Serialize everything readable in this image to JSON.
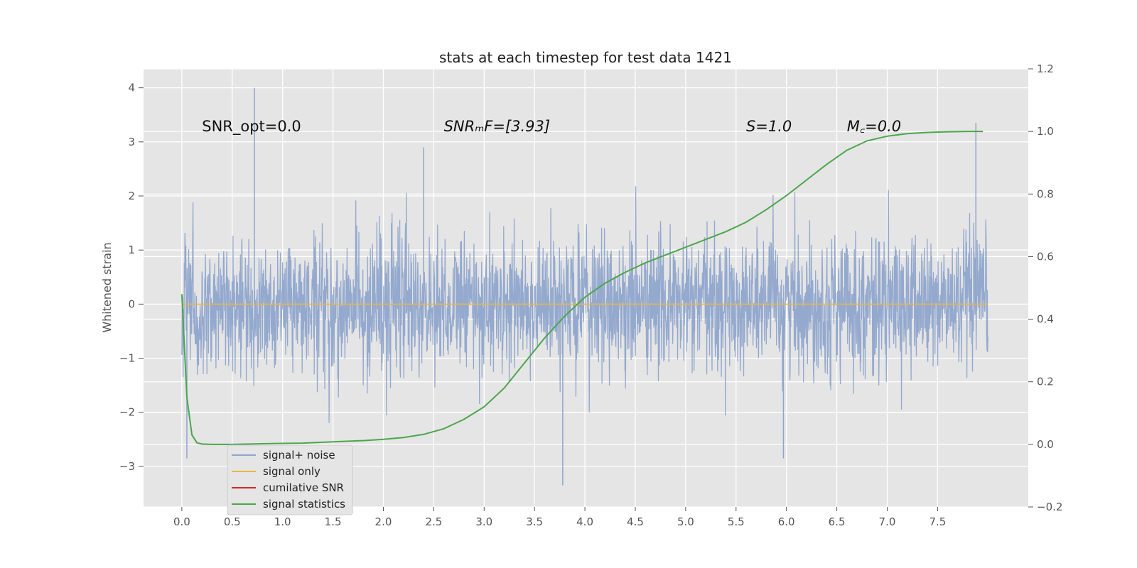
{
  "chart_data": {
    "type": "line",
    "title": "stats at each timestep for test data 1421",
    "ylabel": "Whitened strain",
    "xlabel": "",
    "xlim": [
      -0.38,
      8.4
    ],
    "ylim": [
      -3.75,
      4.35
    ],
    "y2lim": [
      -0.2,
      1.2
    ],
    "x_ticks": [
      0.0,
      0.5,
      1.0,
      1.5,
      2.0,
      2.5,
      3.0,
      3.5,
      4.0,
      4.5,
      5.0,
      5.5,
      6.0,
      6.5,
      7.0,
      7.5
    ],
    "x_tick_labels": [
      "0.0",
      "0.5",
      "1.0",
      "1.5",
      "2.0",
      "2.5",
      "3.0",
      "3.5",
      "4.0",
      "4.5",
      "5.0",
      "5.5",
      "6.0",
      "6.5",
      "7.0",
      "7.5"
    ],
    "y_ticks": [
      -3,
      -2,
      -1,
      0,
      1,
      2,
      3,
      4
    ],
    "y_tick_labels": [
      "−3",
      "−2",
      "−1",
      "0",
      "1",
      "2",
      "3",
      "4"
    ],
    "y2_ticks": [
      -0.2,
      0.0,
      0.2,
      0.4,
      0.6,
      0.8,
      1.0,
      1.2
    ],
    "y2_tick_labels": [
      "−0.2",
      "0.0",
      "0.2",
      "0.4",
      "0.6",
      "0.8",
      "1.0",
      "1.2"
    ],
    "grid": true,
    "legend_position": "lower-left",
    "annotations": [
      {
        "text": "SNR_opt=0.0",
        "x": 0.2,
        "y": 3.3,
        "italic": false
      },
      {
        "text": "SNRₘF=[3.93]",
        "x": 2.6,
        "y": 3.3,
        "italic": true
      },
      {
        "text": "S=1.0",
        "x": 5.6,
        "y": 3.3,
        "italic": true
      },
      {
        "text": "M꜀=0.0",
        "x": 6.6,
        "y": 3.3,
        "italic": true
      }
    ],
    "series": [
      {
        "name": "signal+ noise",
        "color": "#8fa5cc",
        "axis": "left",
        "description_values": {
          "x_start": 0.0,
          "x_end": 8.0,
          "typical_range": [
            -1.6,
            1.8
          ],
          "peaks": [
            [
              0.72,
              4.0
            ],
            [
              2.4,
              2.9
            ],
            [
              3.78,
              -3.35
            ],
            [
              7.88,
              3.35
            ],
            [
              5.97,
              -2.85
            ],
            [
              0.05,
              -2.85
            ]
          ]
        }
      },
      {
        "name": "signal only",
        "color": "#e8b648",
        "axis": "left",
        "x": [
          0.0,
          8.0
        ],
        "values": [
          0.0,
          0.0
        ]
      },
      {
        "name": "cumilative SNR",
        "color": "#d62728",
        "axis": "left",
        "x": [],
        "values": []
      },
      {
        "name": "signal statistics",
        "color": "#4ca64c",
        "axis": "right",
        "x": [
          0.0,
          0.05,
          0.1,
          0.15,
          0.2,
          0.3,
          0.5,
          0.8,
          1.0,
          1.2,
          1.5,
          1.8,
          2.0,
          2.2,
          2.4,
          2.6,
          2.8,
          3.0,
          3.2,
          3.4,
          3.6,
          3.8,
          4.0,
          4.2,
          4.4,
          4.6,
          4.8,
          5.0,
          5.2,
          5.4,
          5.6,
          5.8,
          6.0,
          6.2,
          6.4,
          6.6,
          6.8,
          7.0,
          7.2,
          7.4,
          7.6,
          7.8,
          7.95
        ],
        "values": [
          0.48,
          0.15,
          0.03,
          0.005,
          0.001,
          0.0,
          0.0,
          0.002,
          0.003,
          0.004,
          0.008,
          0.012,
          0.016,
          0.022,
          0.032,
          0.05,
          0.08,
          0.12,
          0.18,
          0.26,
          0.34,
          0.41,
          0.47,
          0.515,
          0.55,
          0.58,
          0.605,
          0.63,
          0.655,
          0.68,
          0.71,
          0.75,
          0.795,
          0.845,
          0.895,
          0.94,
          0.97,
          0.985,
          0.993,
          0.997,
          0.999,
          1.0,
          1.0
        ]
      }
    ]
  }
}
